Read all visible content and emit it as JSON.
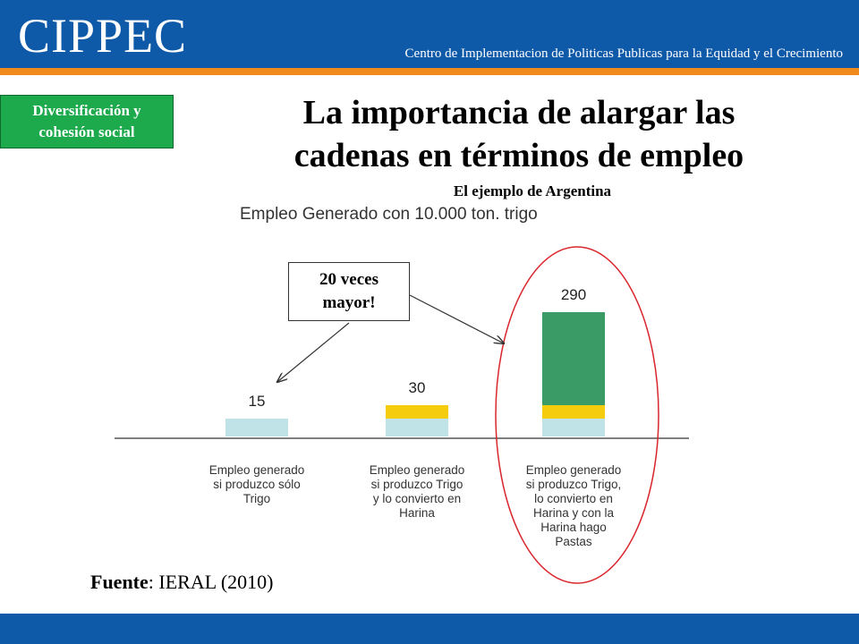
{
  "header": {
    "logo_text": "CIPPEC",
    "tagline": "Centro de Implementacion de Politicas Publicas para la Equidad y el Crecimiento"
  },
  "badge": {
    "line1": "Diversificación y",
    "line2": "cohesión social"
  },
  "slide": {
    "title_line1": "La importancia de alargar las",
    "title_line2": "cadenas en términos de empleo",
    "subtitle": "El ejemplo de Argentina"
  },
  "callout": {
    "line1": "20 veces",
    "line2": "mayor!"
  },
  "source": {
    "label": "Fuente",
    "text": ": IERAL (2010)"
  },
  "colors": {
    "header": "#0f5aa8",
    "stripe": "#f08a1c",
    "badge": "#1daa4c",
    "trigo": "#bfe3e6",
    "harina": "#f6cc0f",
    "pastas": "#3a9b67",
    "highlight": "#d9262c"
  },
  "chart_data": {
    "type": "bar",
    "title": "Empleo Generado con 10.000 ton. trigo",
    "categories": [
      [
        "Empleo generado",
        "si produzco sólo",
        "Trigo"
      ],
      [
        "Empleo generado",
        "si produzco Trigo",
        "y lo convierto en",
        "Harina"
      ],
      [
        "Empleo generado",
        "si produzco Trigo,",
        "lo convierto en",
        "Harina y con la",
        "Harina hago",
        "Pastas"
      ]
    ],
    "totals": [
      15,
      30,
      290
    ],
    "stacks": [
      [
        {
          "color": "#bfe3e6",
          "value": 15
        }
      ],
      [
        {
          "color": "#bfe3e6",
          "value": 15
        },
        {
          "color": "#f6cc0f",
          "value": 15
        }
      ],
      [
        {
          "color": "#bfe3e6",
          "value": 15
        },
        {
          "color": "#f6cc0f",
          "value": 15
        },
        {
          "color": "#3a9b67",
          "value": 260
        }
      ]
    ]
  }
}
